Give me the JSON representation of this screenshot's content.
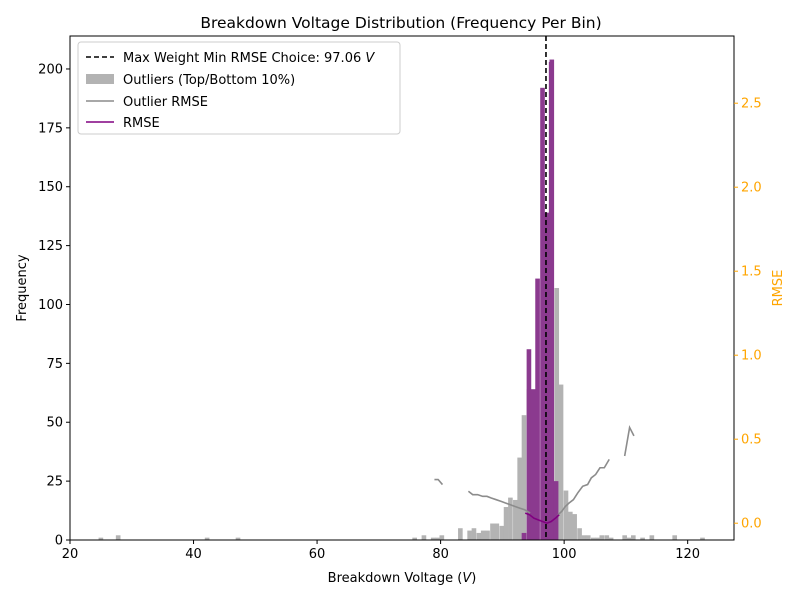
{
  "chart_data": {
    "type": "bar",
    "title": "Breakdown Voltage Distribution (Frequency Per Bin)",
    "xlabel": "Breakdown Voltage",
    "xlabel_unit": "V",
    "ylabel": "Frequency",
    "y2label": "RMSE",
    "xlim": [
      20,
      127.5
    ],
    "ylim": [
      0,
      214
    ],
    "y2lim": [
      -0.1,
      2.9
    ],
    "x_ticks": [
      20,
      40,
      60,
      80,
      100,
      120
    ],
    "y_ticks": [
      0,
      25,
      50,
      75,
      100,
      125,
      150,
      175,
      200
    ],
    "y2_ticks": [
      0.0,
      0.5,
      1.0,
      1.5,
      2.0,
      2.5
    ],
    "grid": false,
    "legend_position": "top-left",
    "colors": {
      "outliers": "#b3b3b3",
      "main": "#8b3a8f",
      "outlier_rmse": "#8c8c8c",
      "rmse": "#800080",
      "vline": "#000000",
      "y2_axis": "#ffa500"
    },
    "vline": {
      "label": "Max Weight Min RMSE Choice: 97.06",
      "label_unit": "V",
      "x": 97.06
    },
    "series": [
      {
        "name": "Outliers (Top/Bottom 10%)",
        "kind": "bar",
        "bin_width": 0.75,
        "x": [
          25,
          27.8,
          42.2,
          47.2,
          75.8,
          77.3,
          78.8,
          79.5,
          80.2,
          83.2,
          84.7,
          85.4,
          86.2,
          86.9,
          87.6,
          88.4,
          89.1,
          89.9,
          90.6,
          91.3,
          92.1,
          92.8,
          93.5,
          94.3,
          95.0,
          98.8,
          99.5,
          100.3,
          101.0,
          101.7,
          102.5,
          103.2,
          103.9,
          104.7,
          105.4,
          106.1,
          106.9,
          107.6,
          109.8,
          110.5,
          111.2,
          112.7,
          114.2,
          117.9,
          122.4
        ],
        "values": [
          1,
          2,
          1,
          1,
          1,
          2,
          1,
          1,
          2,
          5,
          4,
          5,
          3,
          4,
          4,
          7,
          7,
          6,
          14,
          18,
          17,
          35,
          53,
          64,
          64,
          107,
          66,
          21,
          12,
          11,
          5,
          2,
          2,
          1,
          1,
          2,
          2,
          1,
          2,
          1,
          2,
          1,
          2,
          2,
          1
        ]
      },
      {
        "name": "",
        "kind": "bar",
        "bin_width": 0.75,
        "x": [
          93.5,
          94.3,
          95.0,
          95.7,
          96.5,
          97.2,
          98.0,
          98.7
        ],
        "values": [
          3,
          81,
          64,
          111,
          192,
          139,
          204,
          25
        ]
      },
      {
        "name": "",
        "kind": "bar",
        "bin_width": 0.75,
        "x": [
          97.9
        ],
        "values": [
          203
        ]
      },
      {
        "name": "Outlier RMSE",
        "kind": "line",
        "axis": "y2",
        "segments": [
          [
            [
              79.0,
              0.26
            ],
            [
              79.6,
              0.26
            ],
            [
              80.3,
              0.23
            ]
          ],
          [
            [
              84.5,
              0.19
            ],
            [
              85.2,
              0.17
            ],
            [
              86.0,
              0.17
            ],
            [
              86.8,
              0.16
            ],
            [
              87.5,
              0.16
            ],
            [
              88.2,
              0.15
            ],
            [
              89.0,
              0.14
            ],
            [
              89.8,
              0.13
            ],
            [
              90.5,
              0.12
            ],
            [
              91.3,
              0.11
            ],
            [
              92.0,
              0.1
            ],
            [
              92.8,
              0.09
            ],
            [
              93.6,
              0.08
            ],
            [
              94.5,
              0.06
            ]
          ],
          [
            [
              99.0,
              0.05
            ],
            [
              99.6,
              0.07
            ],
            [
              100.2,
              0.1
            ],
            [
              100.8,
              0.12
            ],
            [
              101.5,
              0.14
            ],
            [
              102.2,
              0.18
            ],
            [
              103.0,
              0.22
            ],
            [
              103.8,
              0.23
            ],
            [
              104.4,
              0.27
            ],
            [
              105.1,
              0.29
            ],
            [
              105.8,
              0.33
            ],
            [
              106.5,
              0.33
            ],
            [
              107.3,
              0.38
            ]
          ],
          [
            [
              109.8,
              0.4
            ],
            [
              110.6,
              0.57
            ],
            [
              111.3,
              0.52
            ]
          ]
        ]
      },
      {
        "name": "RMSE",
        "kind": "line",
        "axis": "y2",
        "points": [
          [
            93.7,
            0.06
          ],
          [
            94.4,
            0.05
          ],
          [
            95.1,
            0.03
          ],
          [
            95.8,
            0.02
          ],
          [
            96.5,
            0.01
          ],
          [
            97.2,
            0.0
          ],
          [
            97.9,
            0.01
          ],
          [
            98.6,
            0.03
          ],
          [
            99.2,
            0.05
          ]
        ]
      }
    ]
  }
}
